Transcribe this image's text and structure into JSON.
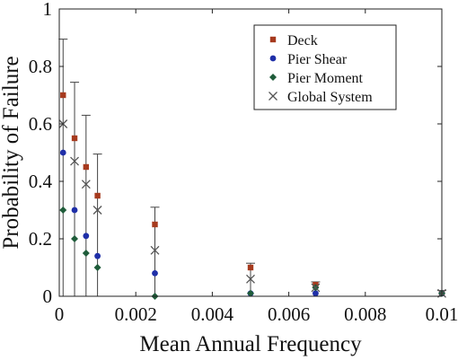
{
  "chart_data": {
    "type": "scatter",
    "xlabel": "Mean Annual Frequency",
    "ylabel": "Probability of Failure",
    "xlim": [
      0,
      0.01
    ],
    "ylim": [
      0,
      1
    ],
    "x_ticks": [
      0,
      0.002,
      0.004,
      0.006,
      0.008,
      0.01
    ],
    "x_tick_labels": [
      "0",
      "0.002",
      "0.004",
      "0.006",
      "0.008",
      "0.01"
    ],
    "y_ticks": [
      0,
      0.2,
      0.4,
      0.6,
      0.8,
      1
    ],
    "y_tick_labels": [
      "0",
      "0.2",
      "0.4",
      "0.6",
      "0.8",
      "1"
    ],
    "grid": false,
    "legend_position": "top-right",
    "series": [
      {
        "name": "Deck",
        "marker": "square",
        "color": "#a63a1e",
        "x": [
          0.0001,
          0.0004,
          0.0007,
          0.001,
          0.0025,
          0.005,
          0.0067,
          0.01
        ],
        "y": [
          0.7,
          0.55,
          0.45,
          0.35,
          0.25,
          0.1,
          0.04,
          0.01
        ]
      },
      {
        "name": "Pier Shear",
        "marker": "circle",
        "color": "#1f2fa8",
        "x": [
          0.0001,
          0.0004,
          0.0007,
          0.001,
          0.0025,
          0.005,
          0.0067,
          0.01
        ],
        "y": [
          0.5,
          0.3,
          0.21,
          0.14,
          0.08,
          0.01,
          0.01,
          0.01
        ]
      },
      {
        "name": "Pier Moment",
        "marker": "diamond",
        "color": "#1f5c3a",
        "x": [
          0.0001,
          0.0004,
          0.0007,
          0.001,
          0.0025,
          0.005,
          0.0067,
          0.01
        ],
        "y": [
          0.3,
          0.2,
          0.15,
          0.1,
          0.0,
          0.01,
          0.03,
          0.01
        ]
      },
      {
        "name": "Global System",
        "marker": "x",
        "color": "#555555",
        "x": [
          0.0001,
          0.0004,
          0.0007,
          0.001,
          0.0025,
          0.005,
          0.0067,
          0.01
        ],
        "y": [
          0.6,
          0.47,
          0.39,
          0.3,
          0.16,
          0.06,
          0.03,
          0.01
        ],
        "error_upper": [
          0.895,
          0.745,
          0.63,
          0.495,
          0.31,
          0.115,
          0.05,
          0.02
        ],
        "error_lower": [
          0.0,
          0.0,
          0.0,
          0.0,
          0.0,
          0.0,
          0.0,
          0.0
        ]
      }
    ]
  }
}
